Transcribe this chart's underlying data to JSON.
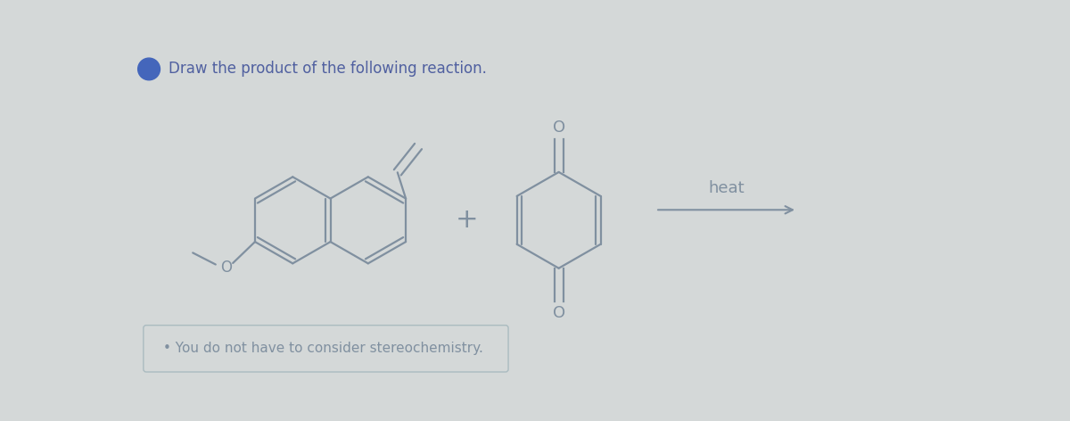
{
  "bg_color": "#d4d8d8",
  "line_color": "#8090a0",
  "text_color": "#8090a0",
  "title_color": "#5060a0",
  "title_text": "Draw the product of the following reaction.",
  "note_text": "You do not have to consider stereochemistry.",
  "heat_text": "heat",
  "fig_width": 12.0,
  "fig_height": 4.72,
  "lw": 1.6
}
